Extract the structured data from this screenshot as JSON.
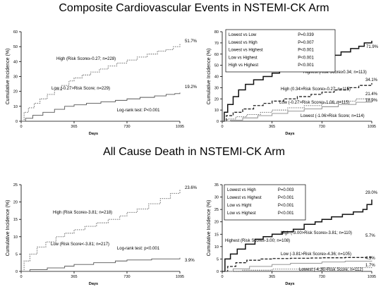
{
  "titles": {
    "top": "Composite Cardiovascular Events in NSTEMI-CK Arm",
    "bottom": "All Cause Death in NSTEMI-CK Arm"
  },
  "chart_data": [
    {
      "id": "top-left",
      "type": "line",
      "ylabel": "Cumulative Incidence (%)",
      "xlabel": "Days",
      "xticks": [
        0,
        365,
        730,
        1095
      ],
      "xlim": [
        0,
        1095
      ],
      "ylim": [
        0,
        60
      ],
      "yticks": [
        0,
        10,
        20,
        30,
        40,
        50,
        60
      ],
      "series": [
        {
          "name": "High (Risk Score≥-0.27; n=228)",
          "style": "dotted",
          "end_label": "51.7%",
          "x": [
            0,
            20,
            50,
            90,
            130,
            180,
            230,
            280,
            330,
            365,
            420,
            480,
            540,
            600,
            660,
            730,
            800,
            870,
            940,
            1000,
            1050,
            1095
          ],
          "y": [
            0,
            6,
            9,
            12,
            15,
            18,
            21,
            24,
            27,
            29,
            31,
            33,
            35,
            37,
            39,
            41,
            43,
            45,
            47,
            48,
            50,
            51.7
          ]
        },
        {
          "name": "Low (-0.27>Risk Score; n=229)",
          "style": "solid",
          "end_label": "19.2%",
          "x": [
            0,
            30,
            80,
            150,
            230,
            300,
            365,
            450,
            550,
            650,
            730,
            820,
            920,
            1000,
            1060,
            1095
          ],
          "y": [
            0,
            2,
            4,
            6,
            8,
            10,
            11,
            12,
            13,
            14,
            15,
            16,
            17,
            18,
            18.5,
            19.2
          ]
        }
      ],
      "annotation": "Log-rank test:  P<0.001"
    },
    {
      "id": "top-right",
      "type": "line",
      "ylabel": "Cumulative Incidence (%)",
      "xlabel": "Days",
      "xticks": [
        0,
        365,
        730,
        1095
      ],
      "xlim": [
        0,
        1095
      ],
      "ylim": [
        0,
        80
      ],
      "yticks": [
        0,
        10,
        20,
        30,
        40,
        50,
        60,
        70,
        80
      ],
      "legend_box": [
        [
          "Lowest vs Low",
          "P=0.039"
        ],
        [
          "Lowest vs High",
          "P=0.007"
        ],
        [
          "Lowest vs Highest",
          "P<0.001"
        ],
        [
          "Low vs Highest",
          "P<0.001"
        ],
        [
          "High vs Highest",
          "P<0.001"
        ]
      ],
      "series": [
        {
          "name": "Highest (Risk Score≥0.34; n=113)",
          "style": "solid-thick",
          "end_label": "71.9%",
          "x": [
            0,
            15,
            40,
            80,
            120,
            170,
            230,
            300,
            365,
            420,
            500,
            580,
            660,
            730,
            800,
            870,
            940,
            1000,
            1040,
            1095
          ],
          "y": [
            0,
            8,
            15,
            22,
            28,
            33,
            37,
            40,
            43,
            45,
            47,
            50,
            53,
            56,
            59,
            62,
            65,
            67,
            70,
            71.9
          ]
        },
        {
          "name": "High (0.34>Risk Score≥-0.27; n=115)",
          "style": "dashed",
          "end_label": "34.1%",
          "x": [
            0,
            30,
            80,
            150,
            230,
            300,
            365,
            450,
            550,
            650,
            730,
            820,
            920,
            1000,
            1095
          ],
          "y": [
            0,
            5,
            8,
            11,
            14,
            16,
            18,
            20,
            22,
            24,
            26,
            28,
            30,
            32,
            34.1
          ]
        },
        {
          "name": "Low (-0.27>Risk Score≥-1.06; n=115)",
          "style": "dotted",
          "end_label": "21.4%",
          "x": [
            0,
            40,
            100,
            180,
            280,
            365,
            480,
            600,
            730,
            850,
            980,
            1095
          ],
          "y": [
            0,
            2,
            4,
            6,
            8,
            10,
            12,
            14,
            16,
            18,
            20,
            21.4
          ]
        },
        {
          "name": "Lowest (-1.06>Risk Score; n=114)",
          "style": "solid-thin",
          "end_label": "18.9%",
          "x": [
            0,
            60,
            150,
            260,
            365,
            480,
            600,
            730,
            850,
            980,
            1095
          ],
          "y": [
            0,
            1,
            3,
            5,
            7,
            9,
            11,
            13,
            15,
            17,
            18.9
          ]
        }
      ]
    },
    {
      "id": "bottom-left",
      "type": "line",
      "ylabel": "Cumulative Incidence (%)",
      "xlabel": "Days",
      "xticks": [
        0,
        365,
        730,
        1095
      ],
      "xlim": [
        0,
        1095
      ],
      "ylim": [
        0,
        25
      ],
      "yticks": [
        0,
        5,
        10,
        15,
        20,
        25
      ],
      "series": [
        {
          "name": "High (Risk Score≥-3.81; n=218)",
          "style": "dotted",
          "end_label": "23.6%",
          "x": [
            0,
            20,
            60,
            110,
            170,
            240,
            300,
            365,
            440,
            520,
            600,
            680,
            730,
            800,
            880,
            960,
            1030,
            1095
          ],
          "y": [
            0,
            3,
            5,
            7,
            8.5,
            10,
            11,
            12,
            13,
            14,
            15,
            16,
            17,
            18,
            19.5,
            21,
            22.5,
            23.6
          ]
        },
        {
          "name": "Low (Risk Score<-3.81; n=217)",
          "style": "solid",
          "end_label": "3.9%",
          "x": [
            0,
            60,
            180,
            300,
            365,
            500,
            650,
            730,
            900,
            1095
          ],
          "y": [
            0,
            0.5,
            1,
            1.5,
            2,
            2.5,
            3,
            3.3,
            3.6,
            3.9
          ]
        }
      ],
      "annotation": "Log-rank test:  p<0.001"
    },
    {
      "id": "bottom-right",
      "type": "line",
      "ylabel": "Cumulative Incidence (%)",
      "xlabel": "Days",
      "xticks": [
        0,
        365,
        730,
        1095
      ],
      "xlim": [
        0,
        1095
      ],
      "ylim": [
        0,
        35
      ],
      "yticks": [
        0,
        5,
        10,
        15,
        20,
        25,
        30,
        35
      ],
      "legend_box": [
        [
          "Lowest vs High",
          "P=0.003"
        ],
        [
          "Lowest vs Highest",
          "P<0.001"
        ],
        [
          "Low vs Hight",
          "P<0.001"
        ],
        [
          "Low vs Highest",
          "P<0.001"
        ]
      ],
      "series": [
        {
          "name": "Highest (Risk Score≥-3.00; n=108)",
          "style": "solid-thick",
          "end_label": "29.0%",
          "x": [
            0,
            20,
            60,
            110,
            170,
            240,
            300,
            365,
            440,
            520,
            600,
            680,
            730,
            800,
            880,
            960,
            1030,
            1060,
            1095
          ],
          "y": [
            0,
            5,
            7,
            9,
            11,
            13,
            14,
            15,
            16,
            17,
            19,
            20,
            21,
            22,
            23,
            24,
            25,
            27,
            29.0
          ]
        },
        {
          "name": "High (-3.00>Risk Score≥-3.81; n=110)",
          "style": "dashed",
          "end_label": "5.7%",
          "x": [
            0,
            40,
            100,
            180,
            280,
            365,
            500,
            650,
            730,
            900,
            1050,
            1095
          ],
          "y": [
            0,
            2,
            3.5,
            4.5,
            5,
            5.2,
            5.3,
            5.4,
            5.5,
            5.6,
            5.7,
            5.7
          ]
        },
        {
          "name": "Low (-3.81>Risk Score≥-4.36; n=105)",
          "style": "solid-thin",
          "end_label": "4.3%",
          "x": [
            0,
            80,
            200,
            365,
            500,
            730,
            900,
            1095
          ],
          "y": [
            0,
            1,
            2,
            2.8,
            3.3,
            3.8,
            4.1,
            4.3
          ]
        },
        {
          "name": "Lowest (-4.36>Risk Score; n=112)",
          "style": "dotted",
          "end_label": "1.7%",
          "x": [
            0,
            150,
            365,
            600,
            730,
            1095
          ],
          "y": [
            0,
            0.5,
            0.9,
            1.2,
            1.5,
            1.7
          ]
        }
      ]
    }
  ]
}
